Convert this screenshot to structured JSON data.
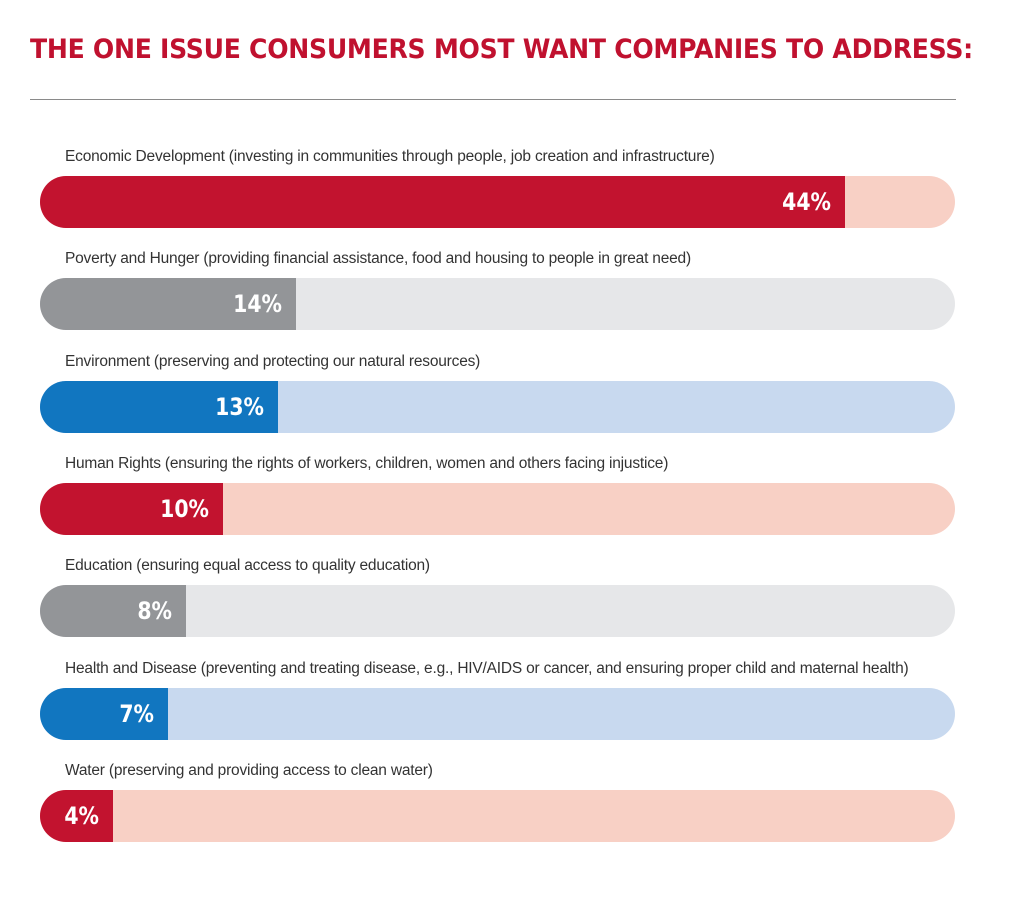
{
  "title": "THE ONE ISSUE CONSUMERS MOST WANT COMPANIES TO ADDRESS:",
  "colors": {
    "red": "#c2132f",
    "red_track": "#f8d0c5",
    "gray": "#939598",
    "gray_track": "#e6e7e9",
    "blue": "#1176c0",
    "blue_track": "#c8d9ef",
    "title": "#c0112f"
  },
  "chart_data": {
    "type": "bar",
    "orientation": "horizontal",
    "title": "THE ONE ISSUE CONSUMERS MOST WANT COMPANIES TO ADDRESS:",
    "xlim": [
      0,
      50
    ],
    "unit": "%",
    "categories": [
      "Economic Development (investing in communities through people, job creation and infrastructure)",
      "Poverty and Hunger (providing financial assistance, food and housing to people in great need)",
      "Environment (preserving and protecting our natural resources)",
      "Human Rights (ensuring the rights of workers, children, women and others facing injustice)",
      "Education (ensuring equal access to quality education)",
      "Health and Disease (preventing and treating disease, e.g., HIV/AIDS or cancer, and ensuring proper child and maternal health)",
      "Water (preserving and providing access to clean water)"
    ],
    "values": [
      44,
      14,
      13,
      10,
      8,
      7,
      4
    ],
    "labels": [
      "44%",
      "14%",
      "13%",
      "10%",
      "8%",
      "7%",
      "4%"
    ],
    "color_scheme": [
      "red",
      "gray",
      "blue",
      "red",
      "gray",
      "blue",
      "red"
    ]
  }
}
